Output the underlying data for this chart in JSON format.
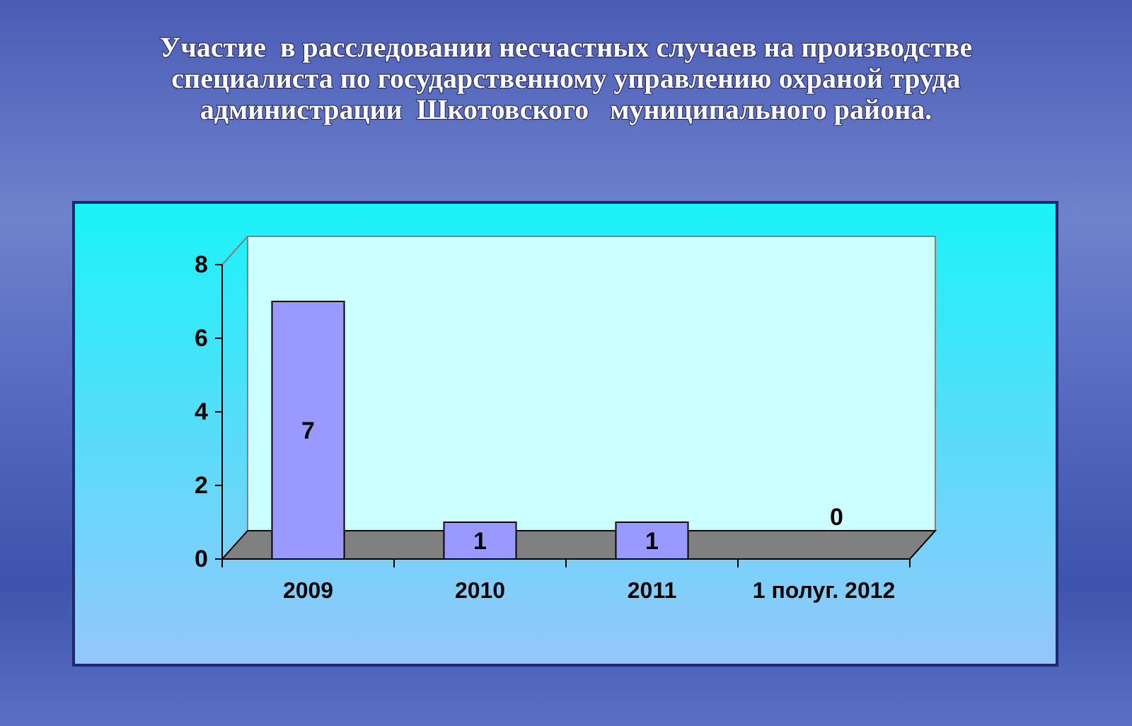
{
  "chart_data": {
    "type": "bar",
    "title": "Участие  в расследовании несчастных случаев на производстве\nспециалиста по государственному управлению охраной труда\nадминистрации  Шкотовского   муниципального района.",
    "categories": [
      "2009",
      "2010",
      "2011",
      "1 полуг. 2012"
    ],
    "values": [
      7,
      1,
      1,
      0
    ],
    "color": "#9999ff",
    "ylim": [
      0,
      8
    ],
    "yticks": [
      0,
      2,
      4,
      6,
      8
    ],
    "data_labels": true
  }
}
